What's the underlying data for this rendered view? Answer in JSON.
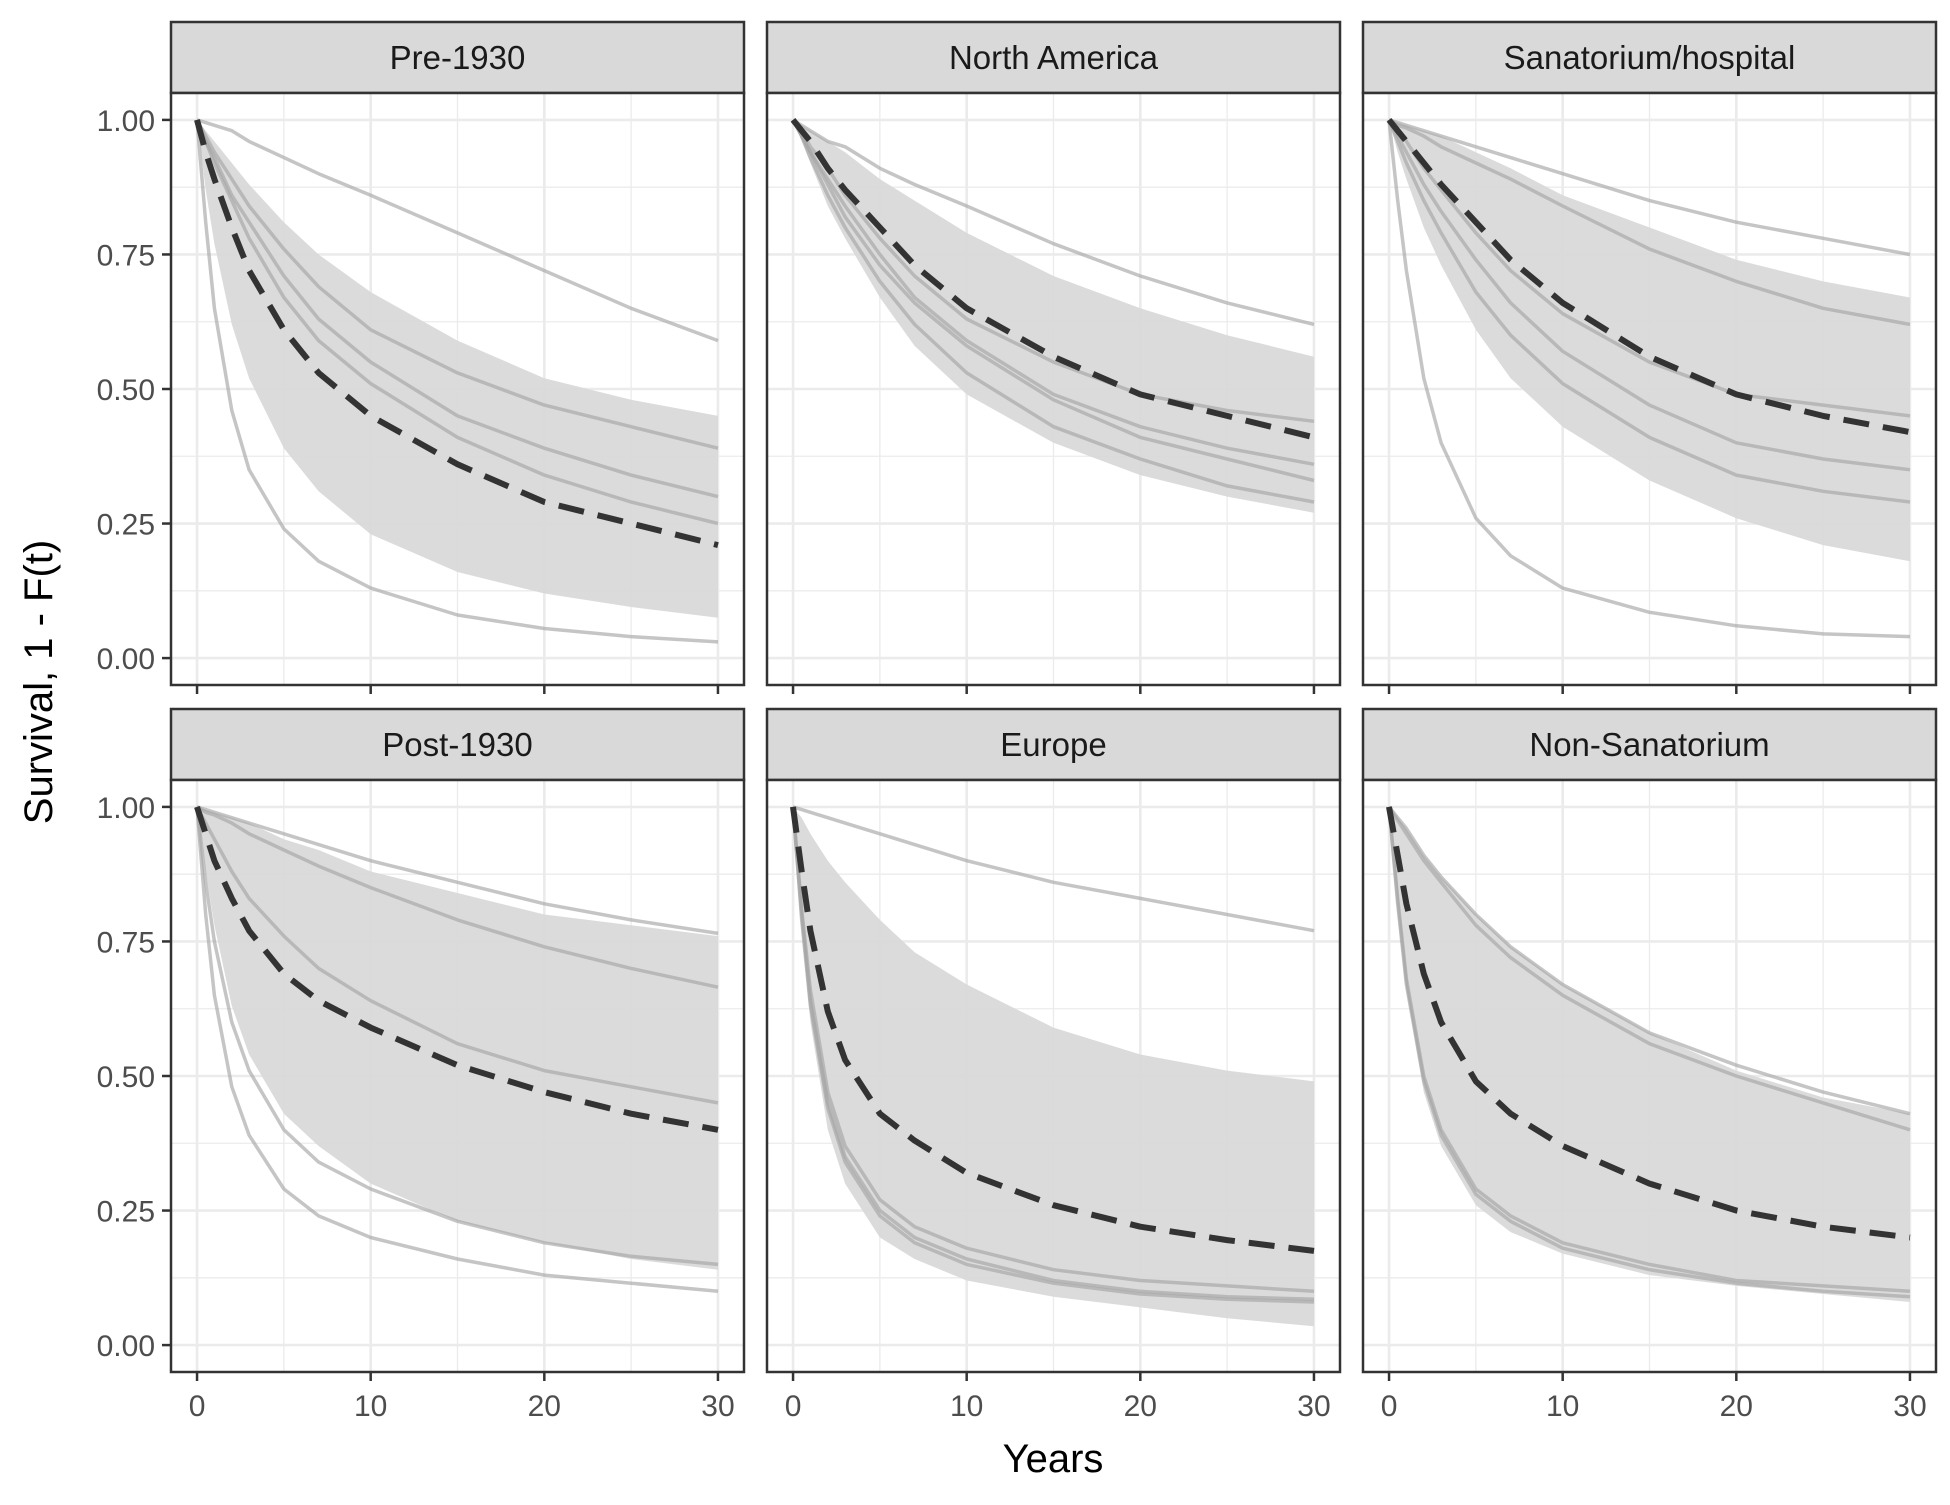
{
  "chart_data": {
    "type": "line",
    "layout": "facet grid, 2 rows x 3 columns",
    "xlabel": "Years",
    "ylabel": "Survival, 1 - F(t)",
    "xlim": [
      0,
      30
    ],
    "ylim": [
      0,
      1
    ],
    "x_ticks": [
      0,
      10,
      20,
      30
    ],
    "y_ticks": [
      0,
      0.25,
      0.5,
      0.75,
      1
    ],
    "y_tick_labels": [
      "0.00",
      "0.25",
      "0.50",
      "0.75",
      "1.00"
    ],
    "x_tick_labels": [
      "0",
      "10",
      "20",
      "30"
    ],
    "grid": true,
    "style": {
      "band_color": "#d9d9d9",
      "line_color": "#a6a6a6",
      "pooled_line_color": "#333333",
      "strip_color": "#d9d9d9",
      "grid_color": "#ebebeb"
    },
    "x": [
      0,
      0.5,
      1,
      2,
      3,
      5,
      7,
      10,
      15,
      20,
      25,
      30
    ],
    "panels": [
      {
        "title": "Pre-1930",
        "band_lower": [
          1,
          0.87,
          0.77,
          0.62,
          0.52,
          0.39,
          0.31,
          0.23,
          0.16,
          0.12,
          0.095,
          0.075
        ],
        "band_upper": [
          1,
          0.98,
          0.96,
          0.92,
          0.88,
          0.81,
          0.75,
          0.68,
          0.59,
          0.52,
          0.48,
          0.45
        ],
        "pooled": [
          1,
          0.94,
          0.89,
          0.8,
          0.72,
          0.61,
          0.53,
          0.45,
          0.36,
          0.29,
          0.25,
          0.21
        ],
        "studies": [
          [
            1,
            0.995,
            0.99,
            0.98,
            0.96,
            0.93,
            0.9,
            0.86,
            0.79,
            0.72,
            0.65,
            0.59
          ],
          [
            1,
            0.97,
            0.94,
            0.89,
            0.84,
            0.76,
            0.69,
            0.61,
            0.53,
            0.47,
            0.43,
            0.39
          ],
          [
            1,
            0.96,
            0.93,
            0.86,
            0.81,
            0.71,
            0.63,
            0.55,
            0.45,
            0.39,
            0.34,
            0.3
          ],
          [
            1,
            0.96,
            0.92,
            0.85,
            0.78,
            0.67,
            0.59,
            0.51,
            0.41,
            0.34,
            0.29,
            0.25
          ],
          [
            1,
            0.81,
            0.65,
            0.46,
            0.35,
            0.24,
            0.18,
            0.13,
            0.08,
            0.055,
            0.04,
            0.03
          ]
        ]
      },
      {
        "title": "North America",
        "band_lower": [
          1,
          0.96,
          0.92,
          0.84,
          0.78,
          0.67,
          0.58,
          0.49,
          0.4,
          0.34,
          0.3,
          0.27
        ],
        "band_upper": [
          1,
          0.99,
          0.98,
          0.96,
          0.94,
          0.89,
          0.85,
          0.79,
          0.71,
          0.65,
          0.6,
          0.56
        ],
        "pooled": [
          1,
          0.98,
          0.96,
          0.91,
          0.87,
          0.8,
          0.73,
          0.65,
          0.56,
          0.49,
          0.45,
          0.41
        ],
        "studies": [
          [
            1,
            0.99,
            0.98,
            0.96,
            0.95,
            0.91,
            0.88,
            0.84,
            0.77,
            0.71,
            0.66,
            0.62
          ],
          [
            1,
            0.98,
            0.95,
            0.91,
            0.86,
            0.78,
            0.71,
            0.63,
            0.55,
            0.49,
            0.46,
            0.44
          ],
          [
            1,
            0.97,
            0.94,
            0.89,
            0.84,
            0.75,
            0.67,
            0.59,
            0.49,
            0.43,
            0.39,
            0.36
          ],
          [
            1,
            0.97,
            0.94,
            0.88,
            0.82,
            0.73,
            0.66,
            0.58,
            0.48,
            0.41,
            0.37,
            0.33
          ],
          [
            1,
            0.97,
            0.93,
            0.86,
            0.8,
            0.7,
            0.62,
            0.53,
            0.43,
            0.37,
            0.32,
            0.29
          ]
        ]
      },
      {
        "title": "Sanatorium/hospital",
        "band_lower": [
          1,
          0.94,
          0.89,
          0.8,
          0.73,
          0.61,
          0.52,
          0.43,
          0.33,
          0.26,
          0.21,
          0.18
        ],
        "band_upper": [
          1,
          0.995,
          0.99,
          0.98,
          0.97,
          0.94,
          0.91,
          0.86,
          0.8,
          0.74,
          0.7,
          0.67
        ],
        "pooled": [
          1,
          0.98,
          0.96,
          0.92,
          0.88,
          0.81,
          0.74,
          0.66,
          0.56,
          0.49,
          0.45,
          0.42
        ],
        "studies": [
          [
            1,
            0.995,
            0.99,
            0.98,
            0.97,
            0.95,
            0.93,
            0.9,
            0.85,
            0.81,
            0.78,
            0.75
          ],
          [
            1,
            0.99,
            0.985,
            0.97,
            0.95,
            0.92,
            0.89,
            0.84,
            0.76,
            0.7,
            0.65,
            0.62
          ],
          [
            1,
            0.98,
            0.96,
            0.91,
            0.87,
            0.79,
            0.72,
            0.64,
            0.55,
            0.49,
            0.47,
            0.45
          ],
          [
            1,
            0.97,
            0.94,
            0.88,
            0.83,
            0.74,
            0.66,
            0.57,
            0.47,
            0.4,
            0.37,
            0.35
          ],
          [
            1,
            0.96,
            0.92,
            0.85,
            0.79,
            0.68,
            0.6,
            0.51,
            0.41,
            0.34,
            0.31,
            0.29
          ],
          [
            1,
            0.85,
            0.72,
            0.52,
            0.4,
            0.26,
            0.19,
            0.13,
            0.085,
            0.06,
            0.045,
            0.04
          ]
        ]
      },
      {
        "title": "Post-1930",
        "band_lower": [
          1,
          0.88,
          0.78,
          0.63,
          0.54,
          0.43,
          0.37,
          0.3,
          0.23,
          0.19,
          0.16,
          0.14
        ],
        "band_upper": [
          1,
          0.995,
          0.99,
          0.98,
          0.97,
          0.94,
          0.92,
          0.88,
          0.84,
          0.8,
          0.78,
          0.76
        ],
        "pooled": [
          1,
          0.95,
          0.9,
          0.83,
          0.77,
          0.69,
          0.64,
          0.59,
          0.52,
          0.47,
          0.43,
          0.4
        ],
        "studies": [
          [
            1,
            0.995,
            0.99,
            0.98,
            0.97,
            0.95,
            0.93,
            0.9,
            0.86,
            0.82,
            0.79,
            0.765
          ],
          [
            1,
            0.99,
            0.985,
            0.97,
            0.95,
            0.92,
            0.89,
            0.85,
            0.79,
            0.74,
            0.7,
            0.665
          ],
          [
            1,
            0.97,
            0.94,
            0.88,
            0.83,
            0.76,
            0.7,
            0.64,
            0.56,
            0.51,
            0.48,
            0.45
          ],
          [
            1,
            0.86,
            0.75,
            0.6,
            0.51,
            0.4,
            0.34,
            0.29,
            0.23,
            0.19,
            0.165,
            0.15
          ],
          [
            1,
            0.8,
            0.65,
            0.48,
            0.39,
            0.29,
            0.24,
            0.2,
            0.16,
            0.13,
            0.115,
            0.1
          ]
        ]
      },
      {
        "title": "Europe",
        "band_lower": [
          1,
          0.78,
          0.6,
          0.4,
          0.3,
          0.2,
          0.16,
          0.12,
          0.09,
          0.07,
          0.05,
          0.035
        ],
        "band_upper": [
          1,
          0.98,
          0.95,
          0.9,
          0.86,
          0.79,
          0.73,
          0.67,
          0.59,
          0.54,
          0.51,
          0.49
        ],
        "pooled": [
          1,
          0.88,
          0.77,
          0.62,
          0.53,
          0.43,
          0.38,
          0.32,
          0.26,
          0.22,
          0.195,
          0.175
        ],
        "studies": [
          [
            1,
            0.995,
            0.99,
            0.98,
            0.97,
            0.95,
            0.93,
            0.9,
            0.86,
            0.83,
            0.8,
            0.77
          ],
          [
            1,
            0.81,
            0.66,
            0.47,
            0.37,
            0.27,
            0.22,
            0.18,
            0.14,
            0.12,
            0.11,
            0.1
          ],
          [
            1,
            0.8,
            0.64,
            0.45,
            0.35,
            0.25,
            0.2,
            0.16,
            0.12,
            0.1,
            0.09,
            0.085
          ],
          [
            1,
            0.79,
            0.63,
            0.44,
            0.34,
            0.24,
            0.19,
            0.15,
            0.115,
            0.095,
            0.085,
            0.08
          ]
        ]
      },
      {
        "title": "Non-Sanatorium",
        "band_lower": [
          1,
          0.82,
          0.66,
          0.47,
          0.37,
          0.26,
          0.21,
          0.17,
          0.13,
          0.11,
          0.095,
          0.08
        ],
        "band_upper": [
          1,
          0.98,
          0.96,
          0.91,
          0.87,
          0.8,
          0.74,
          0.67,
          0.58,
          0.51,
          0.46,
          0.43
        ],
        "pooled": [
          1,
          0.91,
          0.82,
          0.69,
          0.6,
          0.49,
          0.43,
          0.37,
          0.3,
          0.25,
          0.22,
          0.2
        ],
        "studies": [
          [
            1,
            0.98,
            0.96,
            0.91,
            0.87,
            0.8,
            0.74,
            0.67,
            0.58,
            0.52,
            0.47,
            0.43
          ],
          [
            1,
            0.975,
            0.95,
            0.9,
            0.86,
            0.78,
            0.72,
            0.65,
            0.56,
            0.5,
            0.45,
            0.4
          ],
          [
            1,
            0.83,
            0.68,
            0.5,
            0.4,
            0.29,
            0.24,
            0.19,
            0.15,
            0.12,
            0.11,
            0.1
          ],
          [
            1,
            0.82,
            0.67,
            0.49,
            0.39,
            0.28,
            0.23,
            0.18,
            0.14,
            0.115,
            0.1,
            0.09
          ]
        ]
      }
    ]
  }
}
